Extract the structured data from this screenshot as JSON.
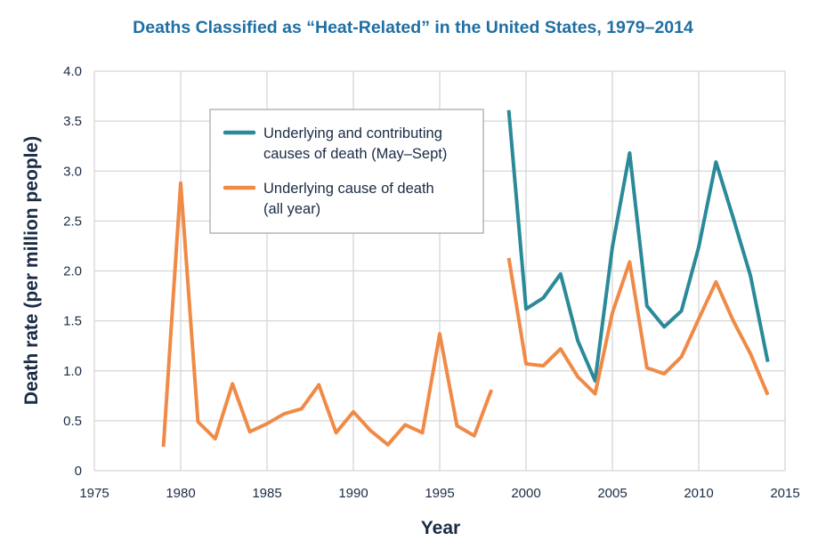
{
  "chart_data": {
    "type": "line",
    "title": "Deaths Classified as “Heat-Related” in the United States, 1979–2014",
    "xlabel": "Year",
    "ylabel": "Death rate (per million people)",
    "xlim": [
      1975,
      2015
    ],
    "ylim": [
      0,
      4.0
    ],
    "xticks": [
      1975,
      1980,
      1985,
      1990,
      1995,
      2000,
      2005,
      2010,
      2015
    ],
    "yticks": [
      {
        "value": 0,
        "label": "0"
      },
      {
        "value": 0.5,
        "label": "0.5"
      },
      {
        "value": 1.0,
        "label": "1.0"
      },
      {
        "value": 1.5,
        "label": "1.5"
      },
      {
        "value": 2.0,
        "label": "2.0"
      },
      {
        "value": 2.5,
        "label": "2.5"
      },
      {
        "value": 3.0,
        "label": "3.0"
      },
      {
        "value": 3.5,
        "label": "3.5"
      },
      {
        "value": 4.0,
        "label": "4.0"
      }
    ],
    "grid": true,
    "legend_position": "top-center",
    "series": [
      {
        "name": "Underlying and contributing causes of death (May–Sept)",
        "legend_lines": [
          "Underlying and contributing",
          "causes of death (May–Sept)"
        ],
        "color": "#2a8a99",
        "points": [
          [
            1999,
            3.61
          ],
          [
            2000,
            1.62
          ],
          [
            2001,
            1.73
          ],
          [
            2002,
            1.97
          ],
          [
            2003,
            1.3
          ],
          [
            2004,
            0.9
          ],
          [
            2005,
            2.24
          ],
          [
            2006,
            3.18
          ],
          [
            2007,
            1.65
          ],
          [
            2008,
            1.44
          ],
          [
            2009,
            1.6
          ],
          [
            2010,
            2.24
          ],
          [
            2011,
            3.09
          ],
          [
            2012,
            2.53
          ],
          [
            2013,
            1.95
          ],
          [
            2014,
            1.09
          ]
        ]
      },
      {
        "name": "Underlying cause of death (all year)",
        "legend_lines": [
          "Underlying cause of death",
          "(all year)"
        ],
        "color": "#f08a46",
        "points": [
          [
            1979,
            0.24
          ],
          [
            1980,
            2.88
          ],
          [
            1981,
            0.49
          ],
          [
            1982,
            0.32
          ],
          [
            1983,
            0.87
          ],
          [
            1984,
            0.39
          ],
          [
            1985,
            0.47
          ],
          [
            1986,
            0.57
          ],
          [
            1987,
            0.62
          ],
          [
            1988,
            0.86
          ],
          [
            1989,
            0.38
          ],
          [
            1990,
            0.59
          ],
          [
            1991,
            0.4
          ],
          [
            1992,
            0.26
          ],
          [
            1993,
            0.46
          ],
          [
            1994,
            0.38
          ],
          [
            1995,
            1.37
          ],
          [
            1996,
            0.45
          ],
          [
            1997,
            0.35
          ],
          [
            1998,
            0.81
          ],
          null,
          [
            1999,
            2.13
          ],
          [
            2000,
            1.07
          ],
          [
            2001,
            1.05
          ],
          [
            2002,
            1.22
          ],
          [
            2003,
            0.94
          ],
          [
            2004,
            0.77
          ],
          [
            2005,
            1.58
          ],
          [
            2006,
            2.09
          ],
          [
            2007,
            1.03
          ],
          [
            2008,
            0.97
          ],
          [
            2009,
            1.14
          ],
          [
            2010,
            1.52
          ],
          [
            2011,
            1.89
          ],
          [
            2012,
            1.5
          ],
          [
            2013,
            1.17
          ],
          [
            2014,
            0.76
          ]
        ]
      }
    ]
  },
  "colors": {
    "title": "#1f6fa3",
    "text": "#1a2b45",
    "grid": "#d6d6d6",
    "legend_border": "#b5b5b5"
  }
}
